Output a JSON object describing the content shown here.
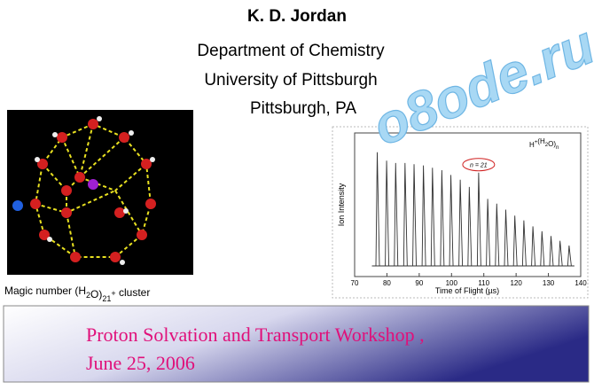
{
  "header": {
    "name": "K. D. Jordan",
    "lines": [
      "Department of Chemistry",
      "University of Pittsburgh",
      "Pittsburgh, PA"
    ]
  },
  "watermark": "o8ode.ru",
  "figure": {
    "caption": [
      "Magic number (H",
      "2",
      "O)",
      "21",
      "+",
      " cluster"
    ]
  },
  "spectrum": {
    "type": "line",
    "xlabel": "Time of Flight (µs)",
    "ylabel": "Ion Intensity",
    "legend": [
      "H",
      "+",
      "(H",
      "2",
      "O)",
      "n"
    ],
    "annotation": "n = 21",
    "annotated_peak": 11,
    "color": "#333333",
    "xlim": [
      70,
      140
    ],
    "xticks": [
      70,
      80,
      90,
      100,
      110,
      120,
      130,
      140
    ],
    "ylim": [
      0,
      100
    ],
    "x": [
      77,
      79.9,
      82.7,
      85.6,
      88.4,
      91.3,
      94.1,
      97,
      99.8,
      102.7,
      105.5,
      108.4,
      111.2,
      114,
      116.8,
      119.6,
      122.4,
      125.2,
      128,
      130.8,
      133.6,
      136.4
    ],
    "values": [
      95,
      88,
      86,
      86,
      85,
      84,
      82,
      80,
      76,
      72,
      66,
      78,
      56,
      52,
      47,
      42,
      38,
      33,
      29,
      25,
      21,
      17
    ]
  },
  "banner": {
    "lines": [
      "Proton Solvation and Transport Workshop ,",
      "June 25, 2006"
    ]
  }
}
